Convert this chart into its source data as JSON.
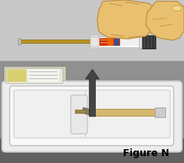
{
  "figure_label": "Figure N",
  "fig_label_fontsize": 10,
  "bg_top": "#c8c8c8",
  "bg_bottom": "#909090",
  "bg_strip": "#606060",
  "needle_pkg_bg": "#d8d8c0",
  "needle_color": "#b89020",
  "syringe_bg": "#ffffff",
  "syringe_label_red": "#cc3300",
  "syringe_label_orange": "#ee6600",
  "syringe_label_blue": "#2255aa",
  "syringe_end_dark": "#333333",
  "hand_skin": "#e8c070",
  "hand_outline": "#c09040",
  "tray_outer": "#e0e0e0",
  "tray_outline": "#aaaaaa",
  "tray_inner_bg": "#f0f0f0",
  "arrow_color": "#444444",
  "white": "#ffffff"
}
